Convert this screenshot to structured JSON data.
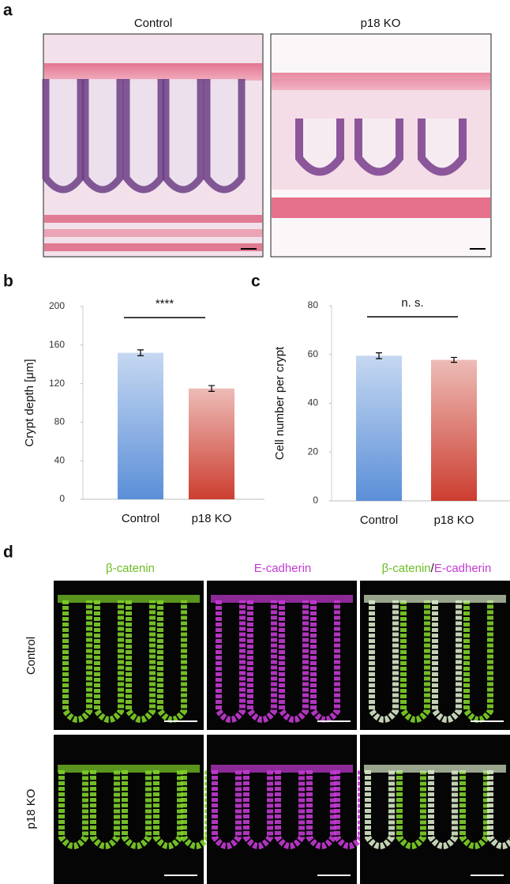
{
  "panel_a": {
    "label": "a",
    "titles": [
      "Control",
      "p18 KO"
    ]
  },
  "chart_data": [
    {
      "type": "bar",
      "panel_label": "b",
      "ylabel": "Crypt depth [μm]",
      "categories": [
        "Control",
        "p18 KO"
      ],
      "values": [
        152,
        115
      ],
      "errors": [
        3,
        3
      ],
      "colors": [
        "#5b8fd8",
        "#cc3e30"
      ],
      "ylim": [
        0,
        200
      ],
      "yticks": [
        0,
        40,
        80,
        120,
        160,
        200
      ],
      "annotation": "****"
    },
    {
      "type": "bar",
      "panel_label": "c",
      "ylabel": "Cell number per  crypt",
      "categories": [
        "Control",
        "p18 KO"
      ],
      "values": [
        59.5,
        57.8
      ],
      "errors": [
        1.2,
        1
      ],
      "colors": [
        "#5b8fd8",
        "#cc3e30"
      ],
      "ylim": [
        0,
        80
      ],
      "yticks": [
        0,
        20,
        40,
        60,
        80
      ],
      "annotation": "n. s."
    }
  ],
  "panel_d": {
    "label": "d",
    "column_titles": [
      "β-catenin",
      "E-cadherin",
      [
        "β-catenin",
        "/",
        "E-cadherin"
      ]
    ],
    "row_labels": [
      "Control",
      "p18 KO"
    ]
  }
}
